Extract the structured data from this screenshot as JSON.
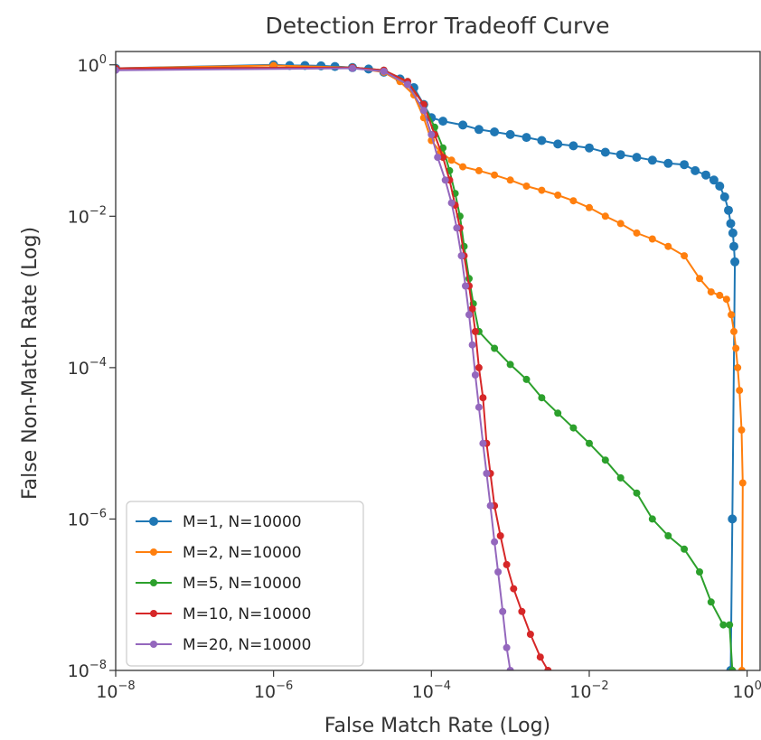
{
  "chart_data": {
    "type": "line",
    "title": "Detection Error Tradeoff Curve",
    "xlabel": "False Match Rate (Log)",
    "ylabel": "False Non-Match Rate (Log)",
    "x_scale": "log",
    "y_scale": "log",
    "xlim": [
      1e-08,
      1.5
    ],
    "ylim": [
      1e-08,
      1.5
    ],
    "x_ticks": [
      {
        "base": "10",
        "exp": "−8",
        "value": 1e-08
      },
      {
        "base": "10",
        "exp": "−6",
        "value": 1e-06
      },
      {
        "base": "10",
        "exp": "−4",
        "value": 0.0001
      },
      {
        "base": "10",
        "exp": "−2",
        "value": 0.01
      },
      {
        "base": "10",
        "exp": "0",
        "value": 1
      }
    ],
    "y_ticks": [
      {
        "base": "10",
        "exp": "0",
        "value": 1
      },
      {
        "base": "10",
        "exp": "−2",
        "value": 0.01
      },
      {
        "base": "10",
        "exp": "−4",
        "value": 0.0001
      },
      {
        "base": "10",
        "exp": "−6",
        "value": 1e-06
      },
      {
        "base": "10",
        "exp": "−8",
        "value": 1e-08
      }
    ],
    "grid": false,
    "legend_position": "lower-left",
    "series": [
      {
        "name": "M=1, N=10000",
        "color": "#1f77b4",
        "x": [
          1e-08,
          1e-06,
          1.6e-06,
          2.5e-06,
          4e-06,
          6e-06,
          1e-05,
          1.6e-05,
          2.5e-05,
          4e-05,
          6e-05,
          8e-05,
          0.0001,
          0.00014,
          0.00025,
          0.0004,
          0.00063,
          0.001,
          0.0016,
          0.0025,
          0.004,
          0.0063,
          0.01,
          0.016,
          0.025,
          0.04,
          0.063,
          0.1,
          0.16,
          0.22,
          0.3,
          0.38,
          0.45,
          0.52,
          0.58,
          0.62,
          0.66,
          0.68,
          0.7,
          0.65,
          0.62
        ],
        "y": [
          0.9,
          1.0,
          0.98,
          0.98,
          0.97,
          0.95,
          0.92,
          0.88,
          0.8,
          0.65,
          0.5,
          0.3,
          0.2,
          0.18,
          0.16,
          0.14,
          0.13,
          0.12,
          0.11,
          0.1,
          0.09,
          0.085,
          0.08,
          0.07,
          0.065,
          0.06,
          0.055,
          0.05,
          0.048,
          0.04,
          0.035,
          0.03,
          0.025,
          0.018,
          0.012,
          0.008,
          0.006,
          0.004,
          0.0025,
          1e-06,
          1e-08
        ]
      },
      {
        "name": "M=2, N=10000",
        "color": "#ff7f0e",
        "x": [
          1e-08,
          1e-06,
          1e-05,
          2.5e-05,
          4e-05,
          6e-05,
          8e-05,
          0.0001,
          0.00013,
          0.00018,
          0.00025,
          0.0004,
          0.00063,
          0.001,
          0.0016,
          0.0025,
          0.004,
          0.0063,
          0.01,
          0.016,
          0.025,
          0.04,
          0.063,
          0.1,
          0.16,
          0.25,
          0.35,
          0.45,
          0.55,
          0.63,
          0.68,
          0.72,
          0.76,
          0.8,
          0.85,
          0.88,
          0.86
        ],
        "y": [
          0.9,
          0.98,
          0.92,
          0.8,
          0.6,
          0.4,
          0.2,
          0.1,
          0.07,
          0.055,
          0.045,
          0.04,
          0.035,
          0.03,
          0.025,
          0.022,
          0.019,
          0.016,
          0.013,
          0.01,
          0.008,
          0.006,
          0.005,
          0.004,
          0.003,
          0.0015,
          0.001,
          0.0009,
          0.0008,
          0.0005,
          0.0003,
          0.00018,
          0.0001,
          5e-05,
          1.5e-05,
          3e-06,
          1e-08
        ]
      },
      {
        "name": "M=5, N=10000",
        "color": "#2ca02c",
        "x": [
          1e-08,
          1e-05,
          2.5e-05,
          5e-05,
          8e-05,
          0.00011,
          0.00014,
          0.00017,
          0.0002,
          0.00023,
          0.00026,
          0.0003,
          0.00034,
          0.0004,
          0.00063,
          0.001,
          0.0016,
          0.0025,
          0.004,
          0.0063,
          0.01,
          0.016,
          0.025,
          0.04,
          0.063,
          0.1,
          0.16,
          0.25,
          0.35,
          0.5,
          0.6,
          0.65
        ],
        "y": [
          0.9,
          0.92,
          0.85,
          0.6,
          0.3,
          0.15,
          0.08,
          0.04,
          0.02,
          0.01,
          0.004,
          0.0015,
          0.0007,
          0.0003,
          0.00018,
          0.00011,
          7e-05,
          4e-05,
          2.5e-05,
          1.6e-05,
          1e-05,
          6e-06,
          3.5e-06,
          2.2e-06,
          1e-06,
          6e-07,
          4e-07,
          2e-07,
          8e-08,
          4e-08,
          4e-08,
          1e-08
        ]
      },
      {
        "name": "M=10, N=10000",
        "color": "#d62728",
        "x": [
          1e-08,
          1e-05,
          2.5e-05,
          5e-05,
          8e-05,
          0.00011,
          0.00014,
          0.00017,
          0.0002,
          0.00023,
          0.00026,
          0.0003,
          0.00033,
          0.00036,
          0.0004,
          0.00045,
          0.0005,
          0.00056,
          0.00063,
          0.00075,
          0.0009,
          0.0011,
          0.0014,
          0.0018,
          0.0024,
          0.003
        ],
        "y": [
          0.9,
          0.92,
          0.85,
          0.6,
          0.3,
          0.12,
          0.06,
          0.03,
          0.014,
          0.007,
          0.003,
          0.0012,
          0.0006,
          0.0003,
          0.0001,
          4e-05,
          1e-05,
          4e-06,
          1.5e-06,
          6e-07,
          2.5e-07,
          1.2e-07,
          6e-08,
          3e-08,
          1.5e-08,
          1e-08
        ]
      },
      {
        "name": "M=20, N=10000",
        "color": "#9467bd",
        "x": [
          1e-08,
          1e-05,
          2.5e-05,
          5e-05,
          8e-05,
          0.0001,
          0.00012,
          0.00015,
          0.00018,
          0.00021,
          0.00024,
          0.00027,
          0.0003,
          0.00033,
          0.00036,
          0.0004,
          0.00045,
          0.0005,
          0.00056,
          0.00063,
          0.0007,
          0.0008,
          0.0009,
          0.001
        ],
        "y": [
          0.85,
          0.9,
          0.82,
          0.55,
          0.25,
          0.12,
          0.06,
          0.03,
          0.015,
          0.007,
          0.003,
          0.0012,
          0.0005,
          0.0002,
          8e-05,
          3e-05,
          1e-05,
          4e-06,
          1.5e-06,
          5e-07,
          2e-07,
          6e-08,
          2e-08,
          1e-08
        ]
      }
    ]
  }
}
